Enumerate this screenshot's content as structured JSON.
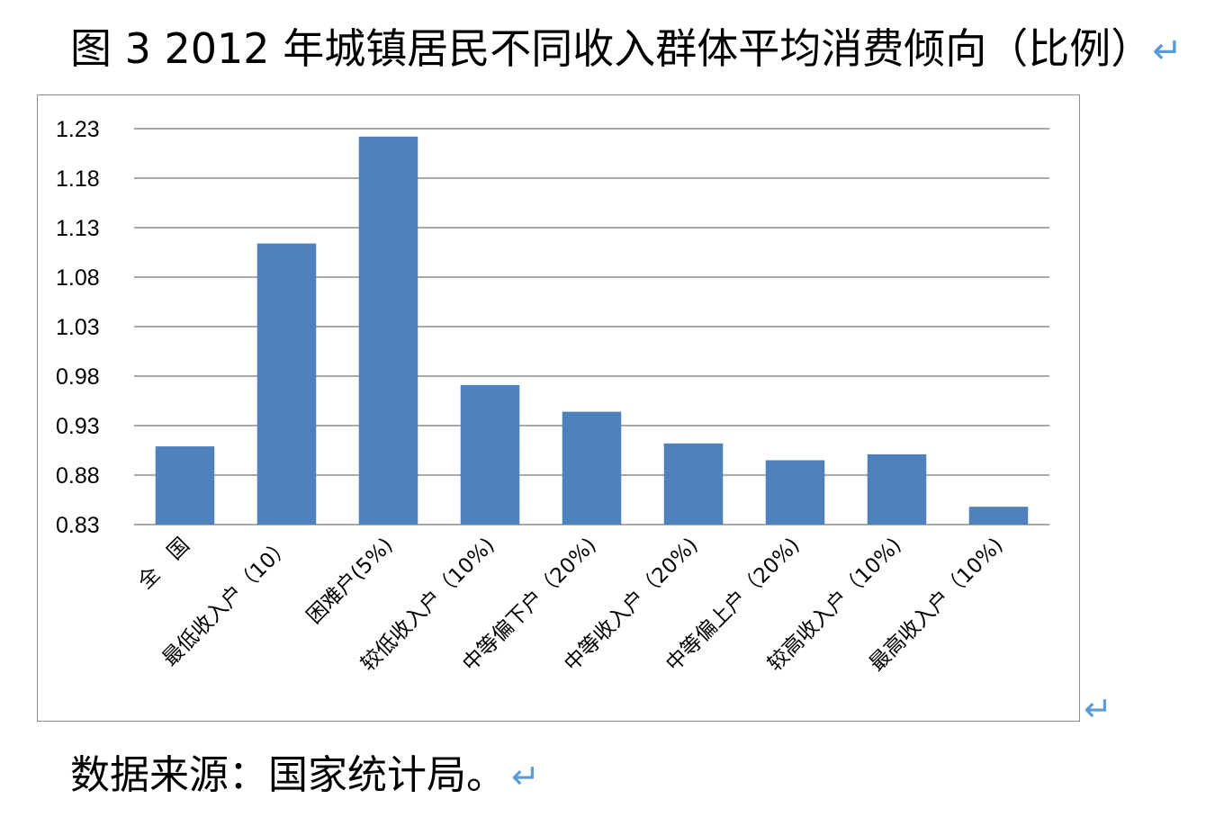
{
  "figure": {
    "title": "图 3 2012 年城镇居民不同收入群体平均消费倾向（比例）",
    "title_mark": "↵",
    "frame_mark": "↵",
    "source": "数据来源：国家统计局。",
    "source_mark": "↵"
  },
  "chart_data": {
    "type": "bar",
    "title": "",
    "xlabel": "",
    "ylabel": "",
    "categories": [
      "全　国",
      "最低收入户（10）",
      "困难户(5%)",
      "较低收入户（10%)",
      "中等偏下户（20%)",
      "中等收入户（20%)",
      "中等偏上户（20%)",
      "较高收入户（10%)",
      "最高收入户（10%)"
    ],
    "values": [
      0.909,
      1.114,
      1.222,
      0.971,
      0.944,
      0.912,
      0.895,
      0.901,
      0.848
    ],
    "ylim": [
      0.83,
      1.23
    ],
    "yticks": [
      0.83,
      0.88,
      0.93,
      0.98,
      1.03,
      1.08,
      1.13,
      1.18,
      1.23
    ],
    "ytick_labels": [
      "0.83",
      "0.88",
      "0.93",
      "0.98",
      "1.03",
      "1.08",
      "1.13",
      "1.18",
      "1.23"
    ],
    "grid": true,
    "legend": "none",
    "bar_color": "#4f81bd",
    "grid_color": "#8c8c8c"
  }
}
